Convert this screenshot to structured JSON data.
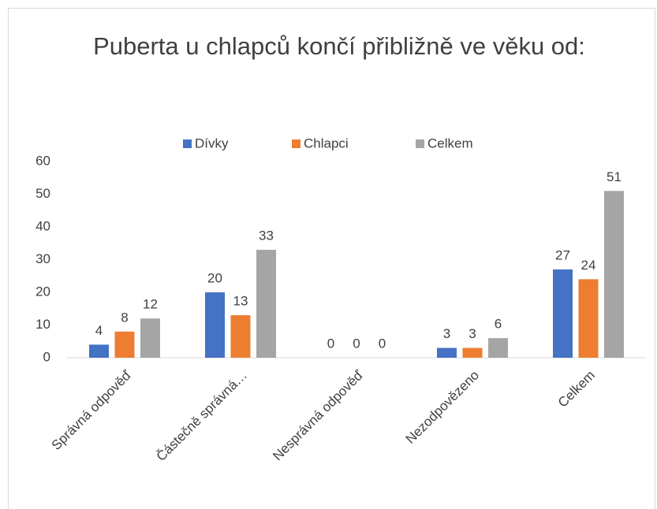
{
  "chart_data": {
    "type": "bar",
    "title": "Puberta u chlapců končí přibližně ve věku od:",
    "categories": [
      "Správná odpověď",
      "Částečně správná…",
      "Nesprávná odpověď",
      "Nezodpovězeno",
      "Celkem"
    ],
    "series": [
      {
        "name": "Dívky",
        "color": "#4472c4",
        "values": [
          4,
          20,
          0,
          3,
          27
        ]
      },
      {
        "name": "Chlapci",
        "color": "#ed7d31",
        "values": [
          8,
          13,
          0,
          3,
          24
        ]
      },
      {
        "name": "Celkem",
        "color": "#a5a5a5",
        "values": [
          12,
          33,
          0,
          6,
          51
        ]
      }
    ],
    "ylim": [
      0,
      60
    ],
    "yticks": [
      0,
      10,
      20,
      30,
      40,
      50,
      60
    ],
    "grid": false,
    "legend": "top"
  }
}
